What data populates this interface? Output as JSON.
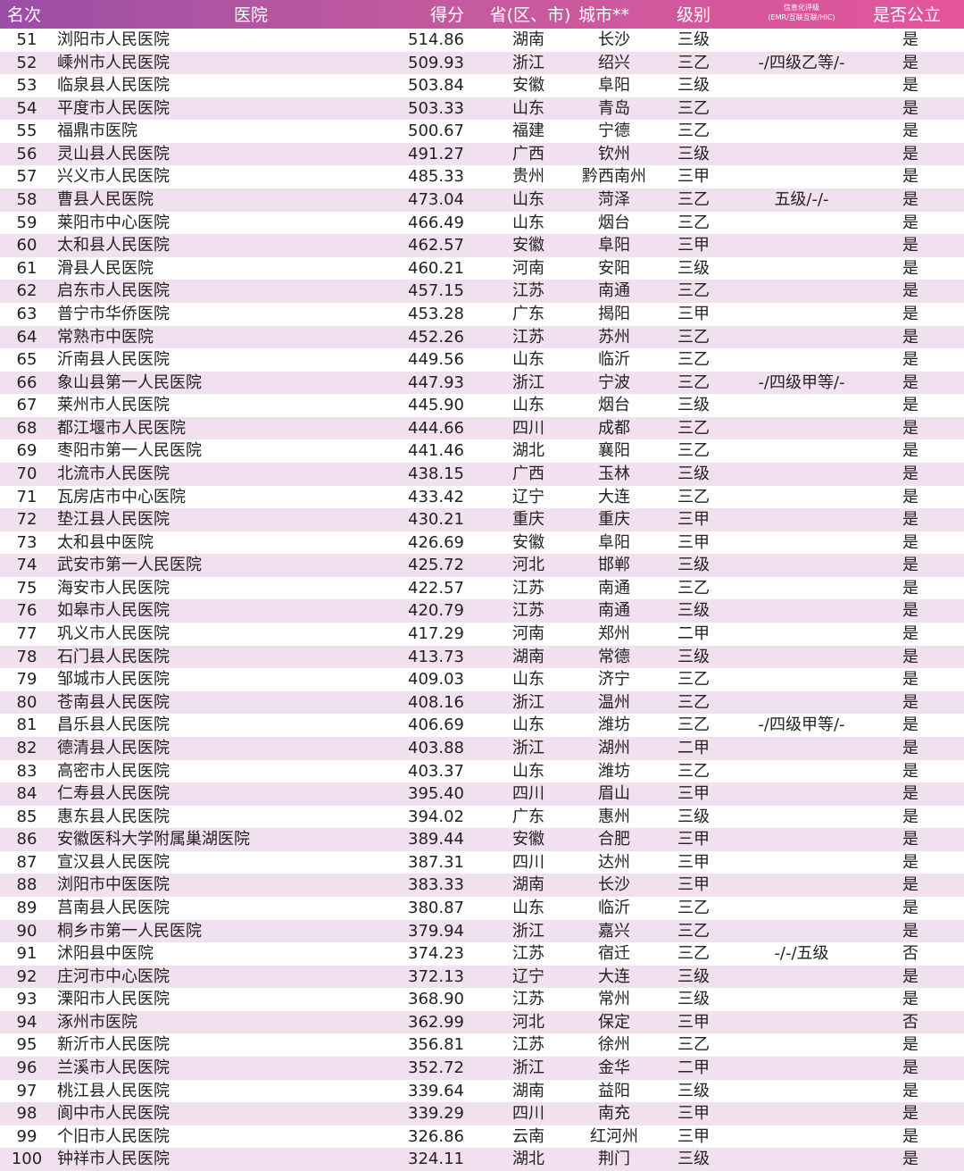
{
  "header": {
    "rank": "名次",
    "hospital": "医院",
    "score": "得分",
    "province": "省(区、市)",
    "city": "城市**",
    "level": "级别",
    "info_line1": "信息化评级",
    "info_line2": "(EMR/互联互联/HIC)",
    "public": "是否公立"
  },
  "colors": {
    "header_start": "#9a4ea6",
    "header_end": "#e4559b",
    "stripe": "#f1e1ef"
  },
  "rows": [
    [
      "51",
      "浏阳市人民医院",
      "514.86",
      "湖南",
      "长沙",
      "三级",
      "",
      "是"
    ],
    [
      "52",
      "嵊州市人民医院",
      "509.93",
      "浙江",
      "绍兴",
      "三乙",
      "-/四级乙等/-",
      "是"
    ],
    [
      "53",
      "临泉县人民医院",
      "503.84",
      "安徽",
      "阜阳",
      "三级",
      "",
      "是"
    ],
    [
      "54",
      "平度市人民医院",
      "503.33",
      "山东",
      "青岛",
      "三乙",
      "",
      "是"
    ],
    [
      "55",
      "福鼎市医院",
      "500.67",
      "福建",
      "宁德",
      "三乙",
      "",
      "是"
    ],
    [
      "56",
      "灵山县人民医院",
      "491.27",
      "广西",
      "钦州",
      "三级",
      "",
      "是"
    ],
    [
      "57",
      "兴义市人民医院",
      "485.33",
      "贵州",
      "黔西南州",
      "三甲",
      "",
      "是"
    ],
    [
      "58",
      "曹县人民医院",
      "473.04",
      "山东",
      "菏泽",
      "三乙",
      "五级/-/-",
      "是"
    ],
    [
      "59",
      "莱阳市中心医院",
      "466.49",
      "山东",
      "烟台",
      "三乙",
      "",
      "是"
    ],
    [
      "60",
      "太和县人民医院",
      "462.57",
      "安徽",
      "阜阳",
      "三甲",
      "",
      "是"
    ],
    [
      "61",
      "滑县人民医院",
      "460.21",
      "河南",
      "安阳",
      "三级",
      "",
      "是"
    ],
    [
      "62",
      "启东市人民医院",
      "457.15",
      "江苏",
      "南通",
      "三乙",
      "",
      "是"
    ],
    [
      "63",
      "普宁市华侨医院",
      "453.28",
      "广东",
      "揭阳",
      "三甲",
      "",
      "是"
    ],
    [
      "64",
      "常熟市中医院",
      "452.26",
      "江苏",
      "苏州",
      "三乙",
      "",
      "是"
    ],
    [
      "65",
      "沂南县人民医院",
      "449.56",
      "山东",
      "临沂",
      "三乙",
      "",
      "是"
    ],
    [
      "66",
      "象山县第一人民医院",
      "447.93",
      "浙江",
      "宁波",
      "三乙",
      "-/四级甲等/-",
      "是"
    ],
    [
      "67",
      "莱州市人民医院",
      "445.90",
      "山东",
      "烟台",
      "三级",
      "",
      "是"
    ],
    [
      "68",
      "都江堰市人民医院",
      "444.66",
      "四川",
      "成都",
      "三乙",
      "",
      "是"
    ],
    [
      "69",
      "枣阳市第一人民医院",
      "441.46",
      "湖北",
      "襄阳",
      "三乙",
      "",
      "是"
    ],
    [
      "70",
      "北流市人民医院",
      "438.15",
      "广西",
      "玉林",
      "三级",
      "",
      "是"
    ],
    [
      "71",
      "瓦房店市中心医院",
      "433.42",
      "辽宁",
      "大连",
      "三乙",
      "",
      "是"
    ],
    [
      "72",
      "垫江县人民医院",
      "430.21",
      "重庆",
      "重庆",
      "三甲",
      "",
      "是"
    ],
    [
      "73",
      "太和县中医院",
      "426.69",
      "安徽",
      "阜阳",
      "三甲",
      "",
      "是"
    ],
    [
      "74",
      "武安市第一人民医院",
      "425.72",
      "河北",
      "邯郸",
      "三级",
      "",
      "是"
    ],
    [
      "75",
      "海安市人民医院",
      "422.57",
      "江苏",
      "南通",
      "三乙",
      "",
      "是"
    ],
    [
      "76",
      "如皋市人民医院",
      "420.79",
      "江苏",
      "南通",
      "三级",
      "",
      "是"
    ],
    [
      "77",
      "巩义市人民医院",
      "417.29",
      "河南",
      "郑州",
      "二甲",
      "",
      "是"
    ],
    [
      "78",
      "石门县人民医院",
      "413.73",
      "湖南",
      "常德",
      "三级",
      "",
      "是"
    ],
    [
      "79",
      "邹城市人民医院",
      "409.03",
      "山东",
      "济宁",
      "三乙",
      "",
      "是"
    ],
    [
      "80",
      "苍南县人民医院",
      "408.16",
      "浙江",
      "温州",
      "三乙",
      "",
      "是"
    ],
    [
      "81",
      "昌乐县人民医院",
      "406.69",
      "山东",
      "潍坊",
      "三乙",
      "-/四级甲等/-",
      "是"
    ],
    [
      "82",
      "德清县人民医院",
      "403.88",
      "浙江",
      "湖州",
      "二甲",
      "",
      "是"
    ],
    [
      "83",
      "高密市人民医院",
      "403.37",
      "山东",
      "潍坊",
      "三乙",
      "",
      "是"
    ],
    [
      "84",
      "仁寿县人民医院",
      "395.40",
      "四川",
      "眉山",
      "三甲",
      "",
      "是"
    ],
    [
      "85",
      "惠东县人民医院",
      "394.02",
      "广东",
      "惠州",
      "三级",
      "",
      "是"
    ],
    [
      "86",
      "安徽医科大学附属巢湖医院",
      "389.44",
      "安徽",
      "合肥",
      "三甲",
      "",
      "是"
    ],
    [
      "87",
      "宣汉县人民医院",
      "387.31",
      "四川",
      "达州",
      "三甲",
      "",
      "是"
    ],
    [
      "88",
      "浏阳市中医医院",
      "383.33",
      "湖南",
      "长沙",
      "三甲",
      "",
      "是"
    ],
    [
      "89",
      "莒南县人民医院",
      "380.87",
      "山东",
      "临沂",
      "三乙",
      "",
      "是"
    ],
    [
      "90",
      "桐乡市第一人民医院",
      "379.94",
      "浙江",
      "嘉兴",
      "三乙",
      "",
      "是"
    ],
    [
      "91",
      "沭阳县中医院",
      "374.23",
      "江苏",
      "宿迁",
      "三乙",
      "-/-/五级",
      "否"
    ],
    [
      "92",
      "庄河市中心医院",
      "372.13",
      "辽宁",
      "大连",
      "三级",
      "",
      "是"
    ],
    [
      "93",
      "溧阳市人民医院",
      "368.90",
      "江苏",
      "常州",
      "三级",
      "",
      "是"
    ],
    [
      "94",
      "涿州市医院",
      "362.99",
      "河北",
      "保定",
      "三甲",
      "",
      "否"
    ],
    [
      "95",
      "新沂市人民医院",
      "356.81",
      "江苏",
      "徐州",
      "三乙",
      "",
      "是"
    ],
    [
      "96",
      "兰溪市人民医院",
      "352.72",
      "浙江",
      "金华",
      "二甲",
      "",
      "是"
    ],
    [
      "97",
      "桃江县人民医院",
      "339.64",
      "湖南",
      "益阳",
      "三级",
      "",
      "是"
    ],
    [
      "98",
      "阆中市人民医院",
      "339.29",
      "四川",
      "南充",
      "三甲",
      "",
      "是"
    ],
    [
      "99",
      "个旧市人民医院",
      "326.86",
      "云南",
      "红河州",
      "三甲",
      "",
      "是"
    ],
    [
      "100",
      "钟祥市人民医院",
      "324.11",
      "湖北",
      "荆门",
      "三级",
      "",
      "是"
    ]
  ]
}
